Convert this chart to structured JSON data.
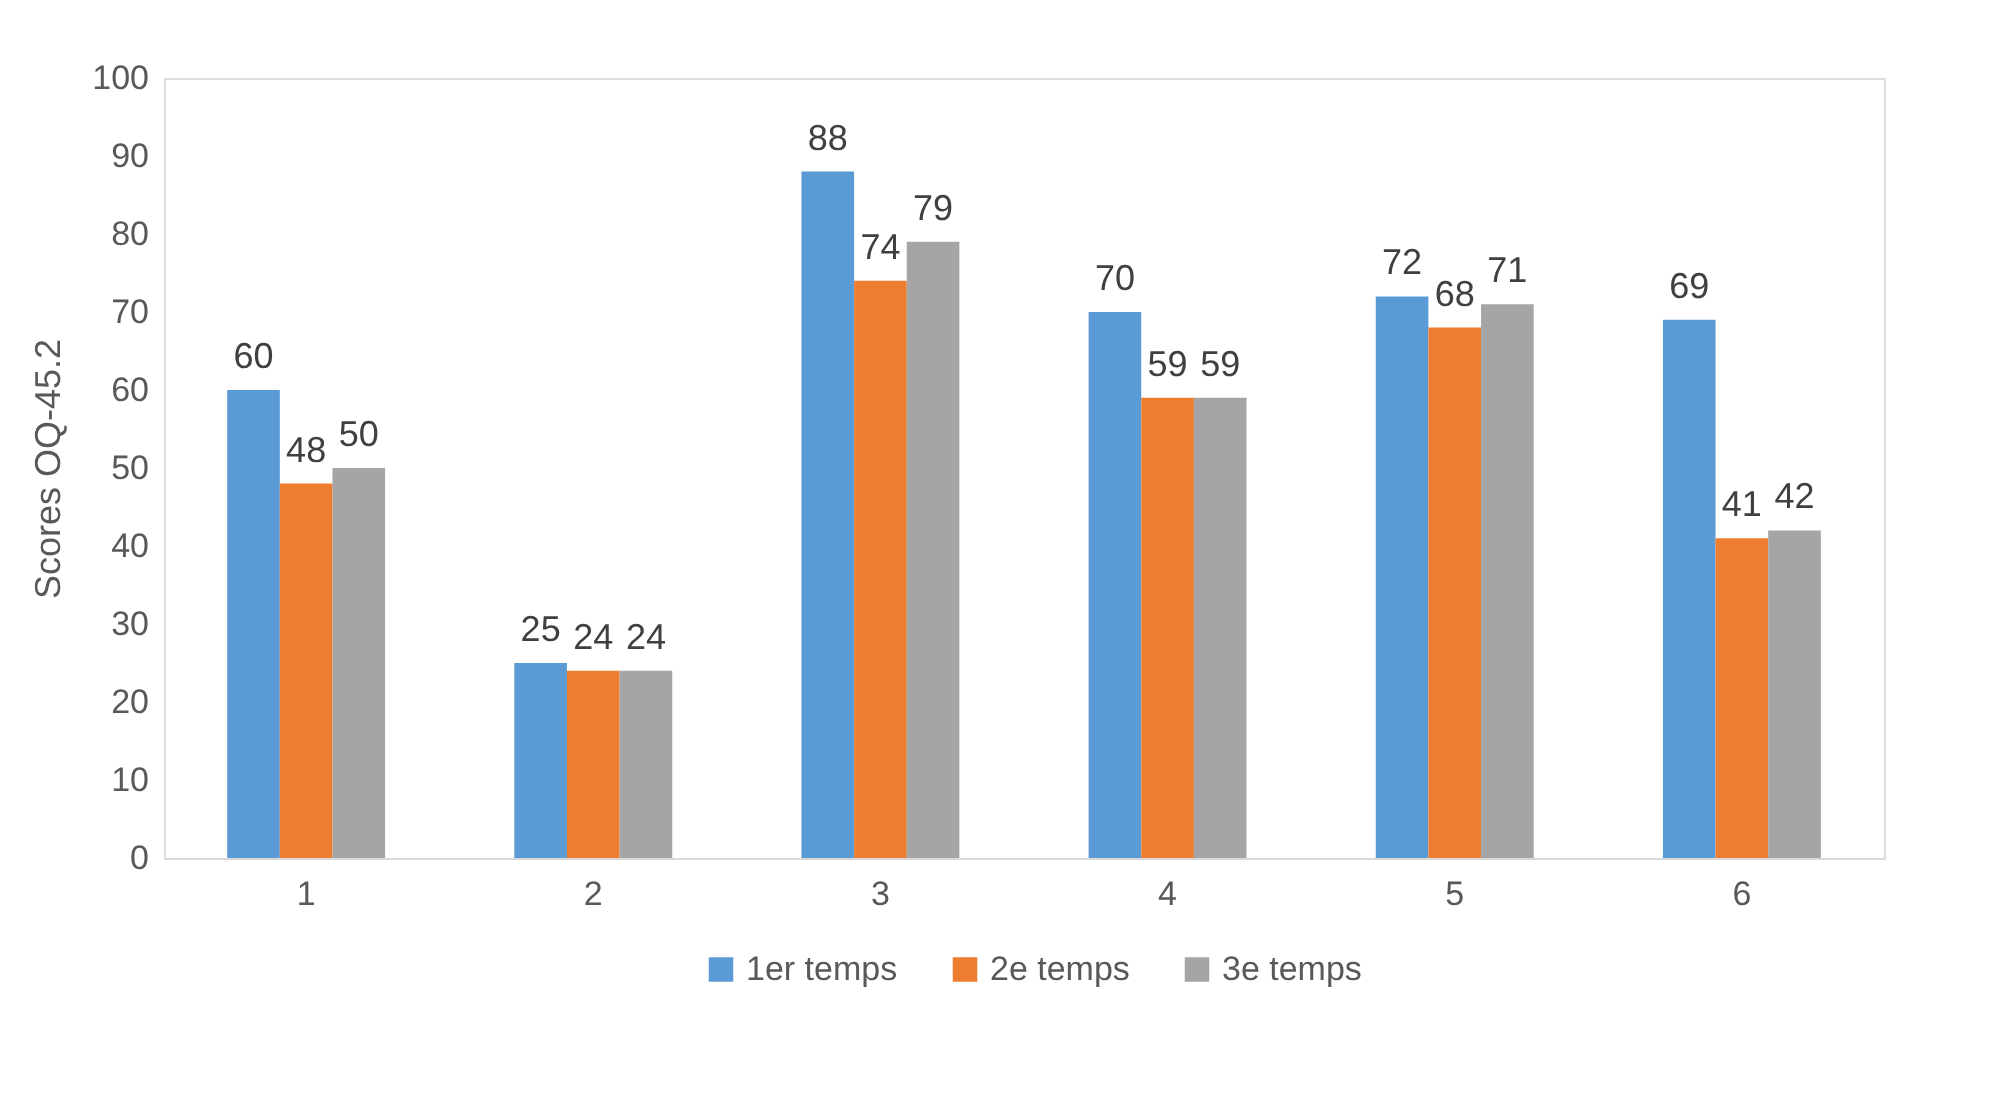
{
  "chart_data": {
    "type": "bar",
    "ylabel": "Scores OQ-45.2",
    "categories": [
      "1",
      "2",
      "3",
      "4",
      "5",
      "6"
    ],
    "series": [
      {
        "name": "1er temps",
        "color": "#5b9bd5",
        "values": [
          60,
          25,
          88,
          70,
          72,
          69
        ]
      },
      {
        "name": "2e temps",
        "color": "#ed7d31",
        "values": [
          48,
          24,
          74,
          59,
          68,
          41
        ]
      },
      {
        "name": "3e temps",
        "color": "#a5a5a5",
        "values": [
          50,
          24,
          79,
          59,
          71,
          42
        ]
      }
    ],
    "ylim": [
      0,
      100
    ],
    "yticks": [
      0,
      10,
      20,
      30,
      40,
      50,
      60,
      70,
      80,
      90,
      100
    ],
    "grid": false,
    "legend": "bottom",
    "data_labels": true
  }
}
